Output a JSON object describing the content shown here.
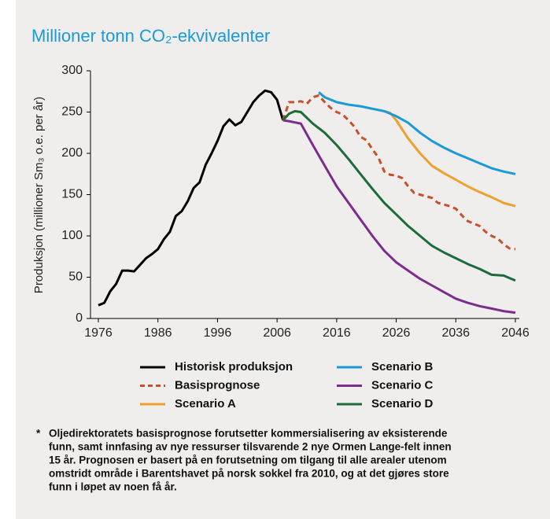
{
  "chart_data": {
    "type": "line",
    "title": "Millioner tonn CO₂-ekvivalenter",
    "ylabel": "Produksjon (millioner Sm₃ o.e. per år)",
    "xlim": [
      1976,
      2046
    ],
    "xticks": [
      1976,
      1986,
      1996,
      2006,
      2016,
      2026,
      2036,
      2046
    ],
    "ylim": [
      0,
      300
    ],
    "yticks": [
      0,
      50,
      100,
      150,
      200,
      250,
      300
    ],
    "series": [
      {
        "name": "Historisk produksjon",
        "color": "#000000",
        "x": [
          1976,
          1977,
          1978,
          1979,
          1980,
          1981,
          1982,
          1983,
          1984,
          1985,
          1986,
          1987,
          1988,
          1989,
          1990,
          1991,
          1992,
          1993,
          1994,
          1995,
          1996,
          1997,
          1998,
          1999,
          2000,
          2001,
          2002,
          2003,
          2004,
          2005,
          2006,
          2007
        ],
        "values": [
          16,
          19,
          33,
          42,
          58,
          58,
          57,
          65,
          73,
          78,
          84,
          96,
          105,
          124,
          130,
          142,
          158,
          165,
          186,
          200,
          215,
          233,
          241,
          234,
          238,
          250,
          262,
          270,
          276,
          274,
          265,
          240
        ]
      },
      {
        "name": "Basisprognose",
        "color": "#c8502a",
        "dashed": true,
        "x": [
          2007,
          2008,
          2009,
          2010,
          2011,
          2012,
          2013,
          2014,
          2015,
          2016,
          2017,
          2018,
          2019,
          2020,
          2021,
          2022,
          2023,
          2024,
          2025,
          2026,
          2027,
          2028,
          2029,
          2030,
          2031,
          2032,
          2033,
          2034,
          2035,
          2036,
          2037,
          2038,
          2039,
          2040,
          2041,
          2042,
          2043,
          2044,
          2045,
          2046
        ],
        "values": [
          240,
          262,
          262,
          263,
          260,
          268,
          270,
          262,
          255,
          250,
          247,
          240,
          232,
          220,
          216,
          205,
          195,
          178,
          174,
          173,
          170,
          160,
          152,
          150,
          148,
          146,
          140,
          138,
          136,
          133,
          125,
          118,
          115,
          112,
          105,
          100,
          97,
          90,
          85,
          84
        ]
      },
      {
        "name": "Scenario A",
        "color": "#f0a030",
        "x": [
          2024,
          2025,
          2026,
          2028,
          2030,
          2032,
          2034,
          2036,
          2038,
          2040,
          2042,
          2044,
          2046
        ],
        "values": [
          251,
          249,
          240,
          218,
          200,
          185,
          176,
          168,
          160,
          153,
          147,
          140,
          136
        ]
      },
      {
        "name": "Scenario B",
        "color": "#1a9ad6",
        "x": [
          2013,
          2014,
          2016,
          2018,
          2020,
          2022,
          2024,
          2026,
          2028,
          2030,
          2032,
          2034,
          2036,
          2038,
          2040,
          2042,
          2044,
          2046
        ],
        "values": [
          274,
          268,
          262,
          259,
          257,
          254,
          251,
          245,
          237,
          225,
          215,
          207,
          200,
          194,
          188,
          182,
          178,
          175
        ]
      },
      {
        "name": "Scenario C",
        "color": "#7b2d8e",
        "x": [
          2007,
          2008,
          2010,
          2012,
          2014,
          2016,
          2018,
          2020,
          2022,
          2024,
          2026,
          2028,
          2030,
          2032,
          2034,
          2036,
          2038,
          2040,
          2042,
          2044,
          2046
        ],
        "values": [
          240,
          239,
          236,
          210,
          185,
          160,
          140,
          120,
          100,
          82,
          68,
          58,
          48,
          40,
          32,
          24,
          19,
          15,
          12,
          9,
          7
        ]
      },
      {
        "name": "Scenario D",
        "color": "#1e6b3a",
        "x": [
          2007,
          2008,
          2009,
          2010,
          2012,
          2014,
          2016,
          2018,
          2020,
          2022,
          2024,
          2026,
          2028,
          2030,
          2032,
          2034,
          2036,
          2038,
          2040,
          2042,
          2044,
          2046
        ],
        "values": [
          240,
          248,
          251,
          250,
          236,
          225,
          210,
          193,
          175,
          157,
          140,
          126,
          112,
          100,
          88,
          80,
          73,
          66,
          60,
          53,
          52,
          46
        ]
      }
    ],
    "footnote": {
      "marker": "*",
      "lines": [
        "Oljedirektoratets basisprognose forutsetter kommersialisering av eksisterende",
        "funn, samt innfasing av nye ressurser tilsvarende 2 nye Ormen Lange-felt innen",
        "15 år. Prognosen er basert på en forutsetning om tilgang til alle arealer utenom",
        "omstridt område i Barentshavet på norsk sokkel fra 2010, og at det gjøres store",
        "funn i løpet av noen få år."
      ]
    }
  }
}
